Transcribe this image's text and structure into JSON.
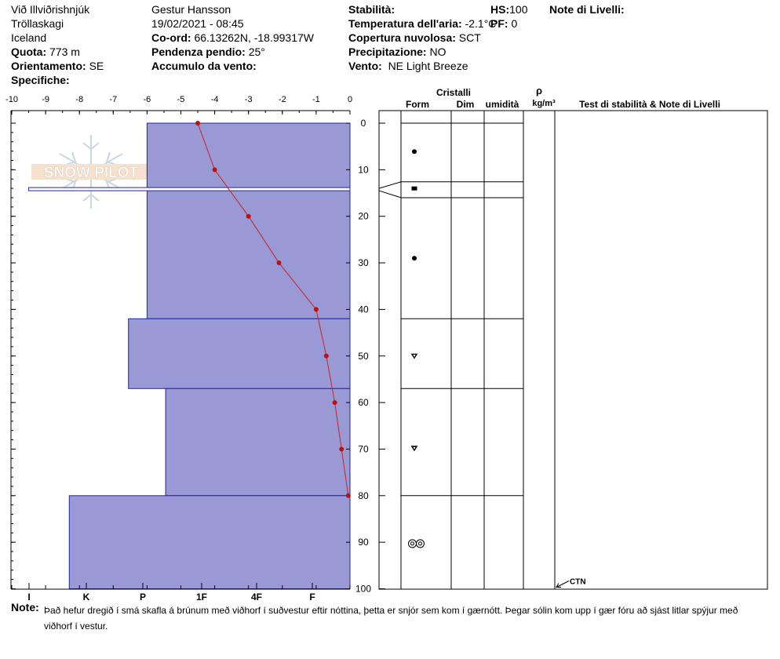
{
  "header": {
    "location": "Við Illviðrishnjúk",
    "region": "Tröllaskagi",
    "country": "Iceland",
    "elevation_label": "Quota:",
    "elevation": "773 m",
    "aspect_label": "Orientamento:",
    "aspect": "SE",
    "specifics_label": "Specifiche:",
    "observer": "Gestur Hansson",
    "datetime": "19/02/2021 - 08:45",
    "coords_label": "Co-ord:",
    "coords": "66.13262N, -18.99317W",
    "slope_label": "Pendenza pendio:",
    "slope": "25°",
    "wind_loading_label": "Accumulo da vento:",
    "stability_label": "Stabilità:",
    "air_temp_label": "Temperatura dell'aria:",
    "air_temp": "-2.1°C",
    "sky_label": "Copertura nuvolosa:",
    "sky": "SCT",
    "precip_label": "Precipitazione:",
    "precip": "NO",
    "wind_label": "Vento:",
    "wind": "NE Light Breeze",
    "hs_label": "HS:",
    "hs": "100",
    "pf_label": "PF:",
    "pf": "0",
    "layer_notes_label": "Note di Livelli:"
  },
  "table_headers": {
    "crystals": "Cristalli",
    "form": "Form",
    "size": "Dim",
    "moisture": "umidità",
    "rho": "ρ",
    "density_unit": "kg/m³",
    "tests": "Test di stabilità & Note di Livelli"
  },
  "ctn_label": "CTN",
  "logo_text": "SNOW PILOT",
  "note_label": "Note:",
  "note_text": "Það hefur dregið í smá skafla á brúnum með viðhorf í suðvestur eftir nóttina, þetta er snjór sem kom í gærnótt. Þegar sólin kom upp í gær fóru að sjást litlar spýjur með viðhorf í vestur.",
  "colors": {
    "hardness_fill": "#9999d6",
    "hardness_stroke": "#2222aa",
    "temp_line": "#cc2222",
    "temp_point": "#bb1111"
  },
  "chart_data": {
    "type": "snow-profile",
    "x_temperature": {
      "ticks": [
        "-10",
        "-9",
        "-8",
        "-7",
        "-6",
        "-5",
        "-4",
        "-3",
        "-2",
        "-1",
        "0"
      ],
      "range": [
        -10,
        0
      ]
    },
    "x_hardness": {
      "ticks": [
        "I",
        "K",
        "P",
        "1F",
        "4F",
        "F"
      ]
    },
    "y_depth": {
      "ticks": [
        "0",
        "10",
        "20",
        "30",
        "40",
        "50",
        "60",
        "70",
        "80",
        "90",
        "100"
      ],
      "range": [
        0,
        100
      ]
    },
    "temperature_profile": [
      {
        "depth": 0,
        "temp": -4.5
      },
      {
        "depth": 10,
        "temp": -4.0
      },
      {
        "depth": 20,
        "temp": -3.0
      },
      {
        "depth": 30,
        "temp": -2.1
      },
      {
        "depth": 40,
        "temp": -1.0
      },
      {
        "depth": 50,
        "temp": -0.7
      },
      {
        "depth": 60,
        "temp": -0.45
      },
      {
        "depth": 70,
        "temp": -0.25
      },
      {
        "depth": 80,
        "temp": -0.05
      }
    ],
    "layers": [
      {
        "top": 0,
        "bottom": 42,
        "hardness_temp_equiv": -6.0,
        "form": "dot"
      },
      {
        "top": 42,
        "bottom": 57,
        "hardness_temp_equiv": -6.55,
        "form": "faceted-round"
      },
      {
        "top": 57,
        "bottom": 80,
        "hardness_temp_equiv": -5.45,
        "form": "faceted-round-2"
      },
      {
        "top": 80,
        "bottom": 100,
        "hardness_temp_equiv": -8.3,
        "form": "depth-hoar"
      }
    ],
    "thin_layer": {
      "top": 14,
      "bottom": 14.5,
      "hardness_temp_equiv": -9.5,
      "form": "square"
    },
    "ctn_depth": 100
  }
}
